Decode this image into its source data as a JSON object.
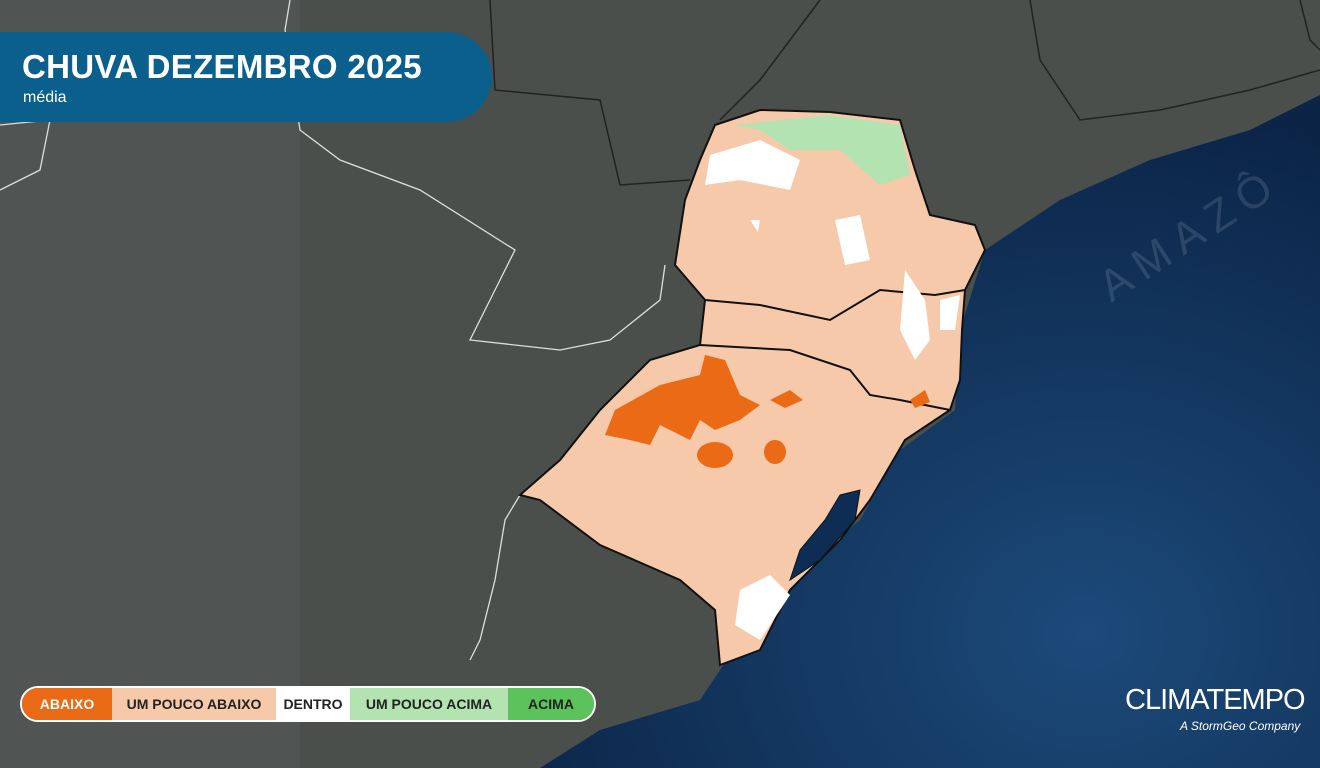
{
  "header": {
    "title": "CHUVA DEZEMBRO 2025",
    "subtitle": "média"
  },
  "legend": {
    "items": [
      {
        "label": "ABAIXO",
        "color": "#ea6a16"
      },
      {
        "label": "UM POUCO ABAIXO",
        "color": "#f6c9ab"
      },
      {
        "label": "DENTRO",
        "color": "#ffffff"
      },
      {
        "label": "UM POUCO ACIMA",
        "color": "#b2e3b0"
      },
      {
        "label": "ACIMA",
        "color": "#5cc25c"
      }
    ]
  },
  "watermark": "AMAZÔ",
  "brand": {
    "name": "CLIMATEMPO",
    "tagline": "A StormGeo Company"
  },
  "colors": {
    "land": "#4a4f4c",
    "ocean": "#0e2d55",
    "title_bg": "#0b5f8c"
  }
}
